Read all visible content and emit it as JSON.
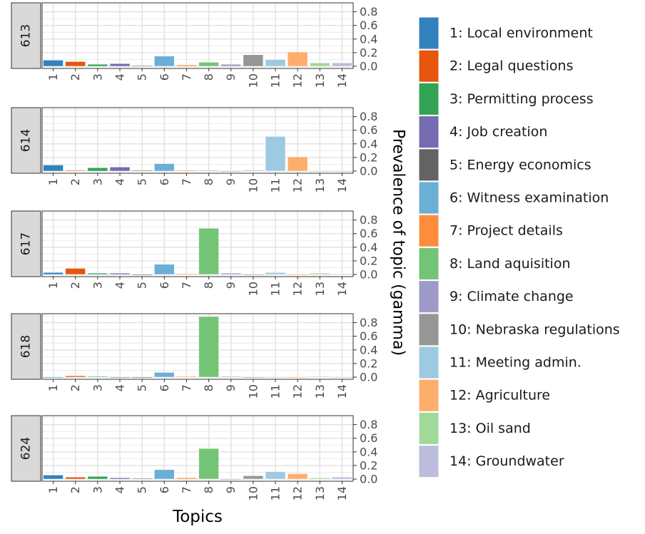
{
  "chart_data": {
    "type": "bar",
    "xlabel": "Topics",
    "ylabel": "Prevalence of topic (gamma)",
    "ylim": [
      0,
      0.9
    ],
    "yticks": [
      0.0,
      0.2,
      0.4,
      0.6,
      0.8
    ],
    "ytick_labels": [
      "0.0",
      "0.2",
      "0.4",
      "0.6",
      "0.8"
    ],
    "categories": [
      "1",
      "2",
      "3",
      "4",
      "5",
      "6",
      "7",
      "8",
      "9",
      "10",
      "11",
      "12",
      "13",
      "14"
    ],
    "grid": true,
    "legend_position": "right",
    "legend": [
      {
        "label": "1: Local environment",
        "color": "#3182bd"
      },
      {
        "label": "2: Legal questions",
        "color": "#e6550d"
      },
      {
        "label": "3: Permitting process",
        "color": "#31a354"
      },
      {
        "label": "4: Job creation",
        "color": "#756bb1"
      },
      {
        "label": "5: Energy economics",
        "color": "#636363"
      },
      {
        "label": "6: Witness examination",
        "color": "#6baed6"
      },
      {
        "label": "7: Project details",
        "color": "#fd8d3c"
      },
      {
        "label": "8: Land aquisition",
        "color": "#74c476"
      },
      {
        "label": "9: Climate change",
        "color": "#9e9ac8"
      },
      {
        "label": "10: Nebraska regulations",
        "color": "#969696"
      },
      {
        "label": "11: Meeting admin.",
        "color": "#9ecae1"
      },
      {
        "label": "12: Agriculture",
        "color": "#fdae6b"
      },
      {
        "label": "13: Oil sand",
        "color": "#a1d99b"
      },
      {
        "label": "14: Groundwater",
        "color": "#bcbddc"
      }
    ],
    "panels": [
      {
        "label": "613",
        "values": [
          0.09,
          0.07,
          0.03,
          0.04,
          0.01,
          0.15,
          0.02,
          0.06,
          0.03,
          0.17,
          0.1,
          0.21,
          0.05,
          0.05
        ]
      },
      {
        "label": "614",
        "values": [
          0.09,
          0.01,
          0.05,
          0.06,
          0.01,
          0.11,
          0.01,
          0.01,
          0.0,
          0.01,
          0.51,
          0.21,
          0.0,
          0.0
        ]
      },
      {
        "label": "617",
        "values": [
          0.03,
          0.09,
          0.02,
          0.02,
          0.0,
          0.15,
          0.01,
          0.68,
          0.02,
          0.0,
          0.03,
          0.0,
          0.02,
          0.01
        ]
      },
      {
        "label": "618",
        "values": [
          0.0,
          0.02,
          0.01,
          0.0,
          0.0,
          0.07,
          0.01,
          0.89,
          0.01,
          0.0,
          0.0,
          0.0,
          0.01,
          0.0
        ]
      },
      {
        "label": "624",
        "values": [
          0.06,
          0.03,
          0.04,
          0.02,
          0.01,
          0.14,
          0.02,
          0.45,
          0.0,
          0.05,
          0.11,
          0.08,
          0.02,
          0.03
        ]
      }
    ]
  }
}
